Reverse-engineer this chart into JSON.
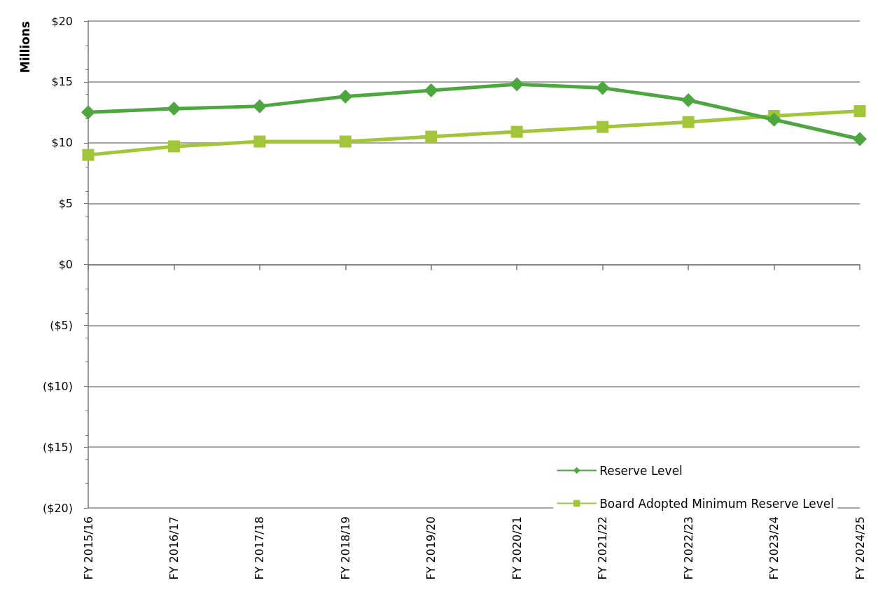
{
  "chart_data": {
    "type": "line",
    "ylabel": "Millions",
    "categories": [
      "FY 2015/16",
      "FY 2016/17",
      "FY 2017/18",
      "FY 2018/19",
      "FY 2019/20",
      "FY 2020/21",
      "FY 2021/22",
      "FY 2022/23",
      "FY 2023/24",
      "FY 2024/25"
    ],
    "series": [
      {
        "name": "Reserve Level",
        "color": "#4ea640",
        "marker": "diamond",
        "values": [
          12.5,
          12.8,
          13.0,
          13.8,
          14.3,
          14.8,
          14.5,
          13.5,
          11.9,
          10.3
        ]
      },
      {
        "name": "Board Adopted Minimum Reserve Level",
        "color": "#a2c539",
        "marker": "square",
        "values": [
          9.0,
          9.7,
          10.1,
          10.1,
          10.5,
          10.9,
          11.3,
          11.7,
          12.2,
          12.6
        ]
      }
    ],
    "ylim": [
      -20,
      20
    ],
    "yticks": [
      {
        "value": -20,
        "label": "($20)"
      },
      {
        "value": -15,
        "label": "($15)"
      },
      {
        "value": -10,
        "label": "($10)"
      },
      {
        "value": -5,
        "label": "($5)"
      },
      {
        "value": 0,
        "label": "$0"
      },
      {
        "value": 5,
        "label": "$5"
      },
      {
        "value": 10,
        "label": "$10"
      },
      {
        "value": 15,
        "label": "$15"
      },
      {
        "value": 20,
        "label": "$20"
      }
    ],
    "grid": "y",
    "legend": "bottom right"
  }
}
